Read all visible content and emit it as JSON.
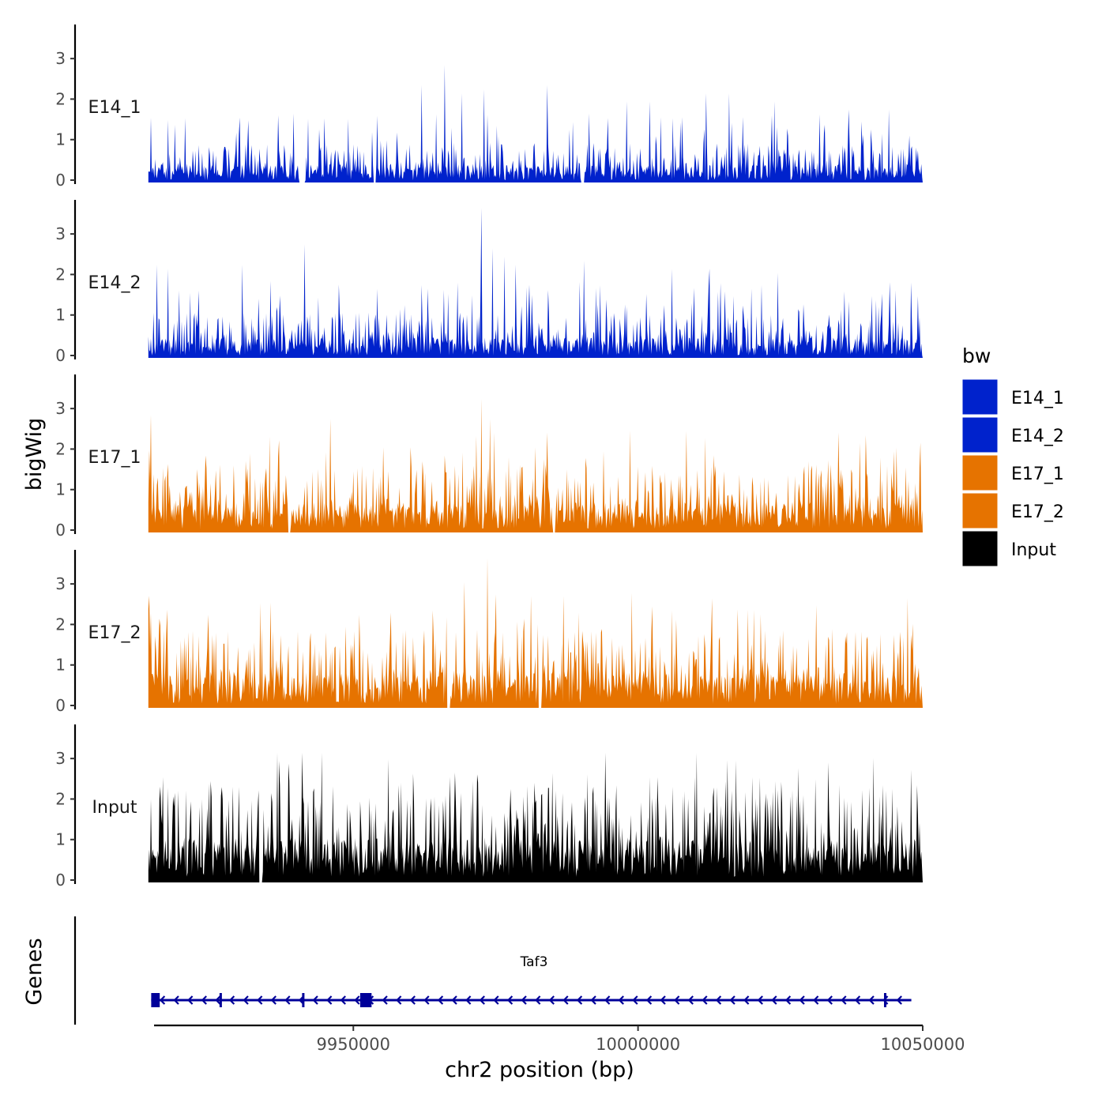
{
  "chart_data": {
    "type": "area",
    "chromosome": "chr2",
    "xlabel": "chr2 position (bp)",
    "ylabel": "bigWig",
    "genes_label": "Genes",
    "xlim": [
      9915000,
      10050000
    ],
    "x_ticks": [
      9950000,
      10000000,
      10050000
    ],
    "x_tick_labels": [
      "9950000",
      "10000000",
      "10050000"
    ],
    "ylim": [
      0,
      3.9
    ],
    "y_ticks": [
      0,
      1,
      2,
      3
    ],
    "y_tick_labels": [
      "0",
      "1",
      "2",
      "3"
    ],
    "data_range": [
      9914000,
      10050000
    ],
    "legend": {
      "title": "bw",
      "position": "right",
      "entries": [
        {
          "label": "E14_1",
          "color": "#0022CC"
        },
        {
          "label": "E14_2",
          "color": "#0022CC"
        },
        {
          "label": "E17_1",
          "color": "#E67300"
        },
        {
          "label": "E17_2",
          "color": "#E67300"
        },
        {
          "label": "Input",
          "color": "#000000"
        }
      ]
    },
    "series": [
      {
        "name": "E14_1",
        "color": "#0022CC",
        "max": 2.9,
        "peak_x": 9966000,
        "baseline": 0.35,
        "seed": 11,
        "gaps": [
          9940500,
          9941500,
          9953500,
          9954000,
          9990000,
          9990600
        ],
        "spikes": [
          [
            9914500,
            1.6
          ],
          [
            9930000,
            1.6
          ],
          [
            9939500,
            1.7
          ],
          [
            9962000,
            2.4
          ],
          [
            9966000,
            2.9
          ],
          [
            9969000,
            2.2
          ],
          [
            9973000,
            2.3
          ],
          [
            9984000,
            2.4
          ],
          [
            9998000,
            2.0
          ],
          [
            10002000,
            2.0
          ],
          [
            10012000,
            2.2
          ],
          [
            10016000,
            2.2
          ],
          [
            10024000,
            2.0
          ],
          [
            10037000,
            1.8
          ],
          [
            10044000,
            1.8
          ],
          [
            10050000,
            1.8
          ]
        ]
      },
      {
        "name": "E14_2",
        "color": "#0022CC",
        "max": 3.7,
        "peak_x": 9972500,
        "baseline": 0.4,
        "seed": 23,
        "gaps": [],
        "spikes": [
          [
            9915500,
            2.3
          ],
          [
            9917500,
            2.2
          ],
          [
            9930500,
            2.3
          ],
          [
            9935500,
            1.9
          ],
          [
            9941500,
            2.8
          ],
          [
            9962000,
            1.8
          ],
          [
            9972500,
            3.7
          ],
          [
            9974500,
            2.7
          ],
          [
            9976500,
            2.5
          ],
          [
            9978500,
            2.3
          ],
          [
            9990500,
            2.4
          ],
          [
            10006000,
            2.2
          ],
          [
            10012500,
            2.2
          ],
          [
            10024500,
            2.1
          ],
          [
            10037000,
            1.4
          ],
          [
            10049500,
            1.0
          ]
        ]
      },
      {
        "name": "E17_1",
        "color": "#E67300",
        "max": 3.3,
        "peak_x": 9972500,
        "baseline": 0.6,
        "seed": 37,
        "gaps": [
          9938500,
          9939000,
          9985000,
          9985500
        ],
        "spikes": [
          [
            9914500,
            2.9
          ],
          [
            9917000,
            1.4
          ],
          [
            9924000,
            1.9
          ],
          [
            9946000,
            2.8
          ],
          [
            9960000,
            2.1
          ],
          [
            9966000,
            1.9
          ],
          [
            9972500,
            3.3
          ],
          [
            9974000,
            2.8
          ],
          [
            9982000,
            2.1
          ],
          [
            9994000,
            2.0
          ],
          [
            10008500,
            2.5
          ],
          [
            10040000,
            2.4
          ],
          [
            10045000,
            2.0
          ],
          [
            10049500,
            1.6
          ]
        ]
      },
      {
        "name": "E17_2",
        "color": "#E67300",
        "max": 3.7,
        "peak_x": 9973500,
        "baseline": 0.7,
        "seed": 53,
        "gaps": [
          9966500,
          9967000,
          9982500,
          9983000
        ],
        "spikes": [
          [
            9916000,
            2.2
          ],
          [
            9924500,
            2.3
          ],
          [
            9935500,
            2.6
          ],
          [
            9951000,
            2.3
          ],
          [
            9964000,
            2.4
          ],
          [
            9969500,
            3.1
          ],
          [
            9973500,
            3.7
          ],
          [
            9975000,
            2.8
          ],
          [
            9980000,
            2.2
          ],
          [
            10002500,
            2.5
          ],
          [
            10006000,
            2.4
          ],
          [
            10013000,
            2.7
          ],
          [
            10025000,
            1.8
          ],
          [
            10045000,
            1.8
          ]
        ]
      },
      {
        "name": "Input",
        "color": "#000000",
        "max": 3.2,
        "peak_x": 9941000,
        "baseline": 0.9,
        "seed": 71,
        "gaps": [
          9933500,
          9934000
        ],
        "spikes": [
          [
            9916500,
            2.6
          ],
          [
            9925000,
            2.5
          ],
          [
            9937000,
            3.0
          ],
          [
            9941000,
            3.2
          ],
          [
            9958000,
            2.4
          ],
          [
            9971000,
            2.5
          ],
          [
            9985000,
            2.7
          ],
          [
            10002000,
            2.6
          ],
          [
            10010000,
            2.6
          ],
          [
            10020000,
            2.6
          ],
          [
            10043000,
            2.4
          ],
          [
            10049000,
            2.4
          ]
        ]
      }
    ],
    "gene_track": {
      "gene_name": "Taf3",
      "strand": "-",
      "color": "#000099",
      "start": 9914500,
      "end": 10048000,
      "exons": [
        [
          9914500,
          9916000
        ],
        [
          9926500,
          9926900
        ],
        [
          9941000,
          9941400
        ],
        [
          9951200,
          9953200
        ],
        [
          10043200,
          10043600
        ]
      ]
    }
  }
}
